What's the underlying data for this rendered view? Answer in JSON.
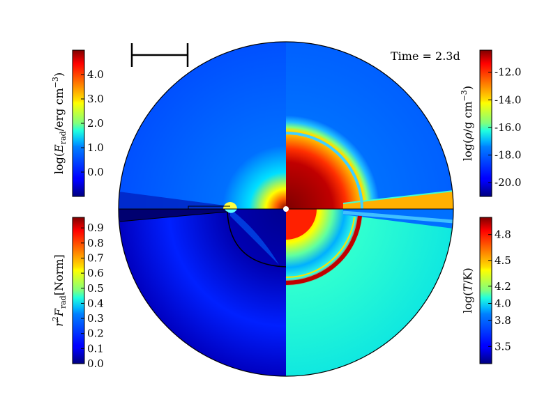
{
  "chart_data": {
    "type": "heatmap",
    "time_label": "Time = 2.3d",
    "center_marker": "white-dot",
    "quadrants": [
      {
        "position": "top-left",
        "quantity": "log(E_rad/erg cm^-3)"
      },
      {
        "position": "top-right",
        "quantity": "log(rho/g cm^-3)"
      },
      {
        "position": "bottom-left",
        "quantity": "r^2 F_rad [Norm]"
      },
      {
        "position": "bottom-right",
        "quantity": "log(T/K)"
      }
    ],
    "colorbars": [
      {
        "id": "erad",
        "position": "top-left",
        "label_base": "log(",
        "label_var": "E",
        "label_sub": "rad",
        "label_unit": "/erg cm",
        "label_sup": "−3",
        "label_close": ")",
        "min": -1.0,
        "max": 5.0,
        "ticks": [
          0.0,
          1.0,
          2.0,
          3.0,
          4.0
        ],
        "tick_labels": [
          "0.0",
          "1.0",
          "2.0",
          "3.0",
          "4.0"
        ]
      },
      {
        "id": "rho",
        "position": "top-right",
        "label_base": "log(",
        "label_var": "ρ",
        "label_sub": "",
        "label_unit": "/g cm",
        "label_sup": "−3",
        "label_close": ")",
        "min": -21.0,
        "max": -10.4,
        "ticks": [
          -20.0,
          -18.0,
          -16.0,
          -14.0,
          -12.0
        ],
        "tick_labels": [
          "-20.0",
          "-18.0",
          "-16.0",
          "-14.0",
          "-12.0"
        ]
      },
      {
        "id": "frad",
        "position": "bottom-left",
        "label_base": "",
        "label_var": "r",
        "label_sup2": "2",
        "label_var2": "F",
        "label_sub": "rad",
        "label_unit": "[Norm]",
        "min": 0.0,
        "max": 0.97,
        "ticks": [
          0.0,
          0.1,
          0.2,
          0.3,
          0.4,
          0.5,
          0.6,
          0.7,
          0.8,
          0.9
        ],
        "tick_labels": [
          "0.0",
          "0.1",
          "0.2",
          "0.3",
          "0.4",
          "0.5",
          "0.6",
          "0.7",
          "0.8",
          "0.9"
        ]
      },
      {
        "id": "temp",
        "position": "bottom-right",
        "label_base": "log(",
        "label_var": "T",
        "label_unit": "/K",
        "label_close": ")",
        "min": 3.3,
        "max": 5.0,
        "ticks": [
          3.5,
          3.8,
          4.0,
          4.2,
          4.5,
          4.8
        ],
        "tick_labels": [
          "3.5",
          "3.8",
          "4.0",
          "4.2",
          "4.5",
          "4.8"
        ]
      }
    ],
    "scale_bar": "length-scale-bar",
    "colormap": "jet"
  }
}
